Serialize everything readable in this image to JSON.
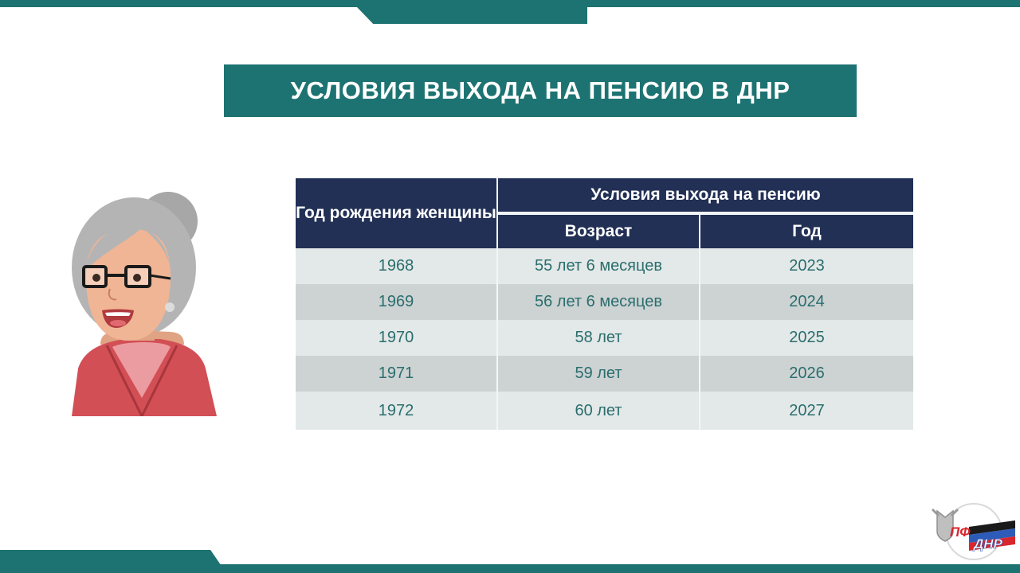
{
  "title": "УСЛОВИЯ ВЫХОДА НА ПЕНСИЮ В ДНР",
  "table": {
    "header_birth_year": "Год рождения женщины",
    "header_conditions": "Условия выхода на пенсию",
    "header_age": "Возраст",
    "header_year": "Год",
    "rows": [
      {
        "birth_year": "1968",
        "age": "55 лет 6 месяцев",
        "year": "2023"
      },
      {
        "birth_year": "1969",
        "age": "56 лет 6 месяцев",
        "year": "2024"
      },
      {
        "birth_year": "1970",
        "age": "58 лет",
        "year": "2025"
      },
      {
        "birth_year": "1971",
        "age": "59 лет",
        "year": "2026"
      },
      {
        "birth_year": "1972",
        "age": "60 лет",
        "year": "2027"
      }
    ]
  },
  "logo": {
    "line1": "ПФ",
    "line2": "ДНР"
  },
  "colors": {
    "teal": "#1d7372",
    "navy": "#223055",
    "text_teal": "#2a6e6d"
  }
}
